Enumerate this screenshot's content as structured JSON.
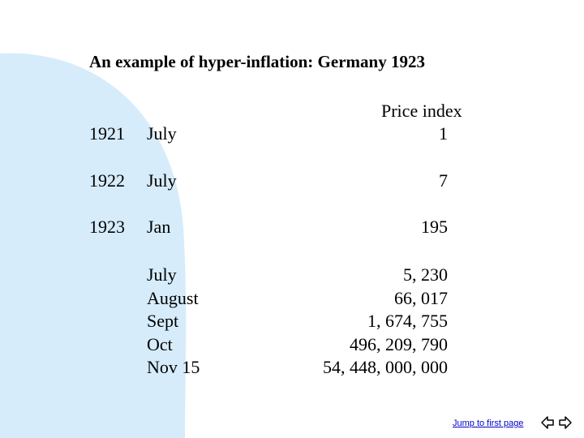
{
  "title": "An example of hyper-inflation: Germany 1923",
  "header": {
    "price_index": "Price index"
  },
  "rows": [
    {
      "year": "1921",
      "month": "July",
      "value": "1"
    },
    {
      "year": "1922",
      "month": "July",
      "value": "7"
    },
    {
      "year": "1923",
      "month": "Jan",
      "value": "195"
    }
  ],
  "months_1923": [
    "July",
    "August",
    "Sept",
    "Oct",
    "Nov 15"
  ],
  "values_1923": [
    "5, 230",
    "66, 017",
    "1, 674, 755",
    "496, 209, 790",
    "54, 448, 000, 000"
  ],
  "footer": {
    "jump_link": "Jump to first page"
  },
  "icons": {
    "back": "back-arrow-icon",
    "forward": "forward-arrow-icon"
  },
  "colors": {
    "background_shape": "#d6ecfb",
    "link": "#0000cc"
  }
}
